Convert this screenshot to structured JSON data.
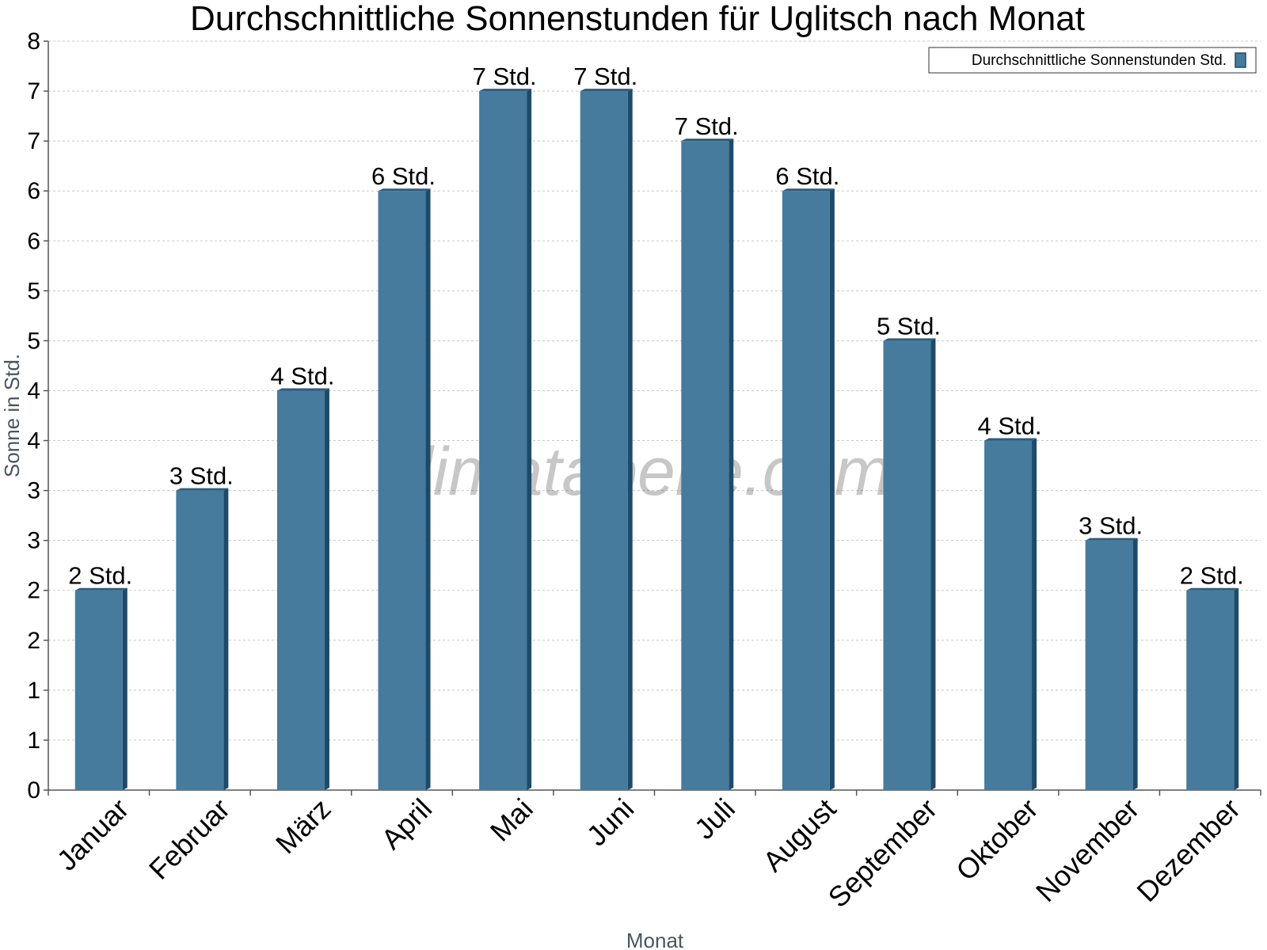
{
  "chart_data": {
    "type": "bar",
    "title": "Durchschnittliche Sonnenstunden für Uglitsch nach Monat",
    "xlabel": "Monat",
    "ylabel": "Sonne in Std.",
    "categories": [
      "Januar",
      "Februar",
      "März",
      "April",
      "Mai",
      "Juni",
      "Juli",
      "August",
      "September",
      "Oktober",
      "November",
      "Dezember"
    ],
    "series": [
      {
        "name": "Durchschnittliche Sonnenstunden Std.",
        "values": [
          2.0,
          3.0,
          4.0,
          6.0,
          7.0,
          7.0,
          6.5,
          6.0,
          4.5,
          3.5,
          2.5,
          2.0
        ],
        "data_labels": [
          "2 Std.",
          "3 Std.",
          "4 Std.",
          "6 Std.",
          "7 Std.",
          "7 Std.",
          "7 Std.",
          "6 Std.",
          "5 Std.",
          "4 Std.",
          "3 Std.",
          "2 Std."
        ]
      }
    ],
    "ylim": [
      0,
      7.5
    ],
    "y_tick_values": [
      0,
      0.5,
      1,
      1.5,
      2,
      2.5,
      3,
      3.5,
      4,
      4.5,
      5,
      5.5,
      6,
      6.5,
      7,
      7.5
    ],
    "y_tick_labels": [
      "0",
      "1",
      "1",
      "2",
      "2",
      "3",
      "3",
      "4",
      "4",
      "5",
      "5",
      "6",
      "6",
      "7",
      "7",
      "8"
    ],
    "grid": true,
    "legend_position": "top-right",
    "watermark": "klimatabelle.com",
    "colors": {
      "bar_face": "#467b9d",
      "bar_side": "#1e4a6a",
      "bar_top": "#2a5d80"
    }
  }
}
